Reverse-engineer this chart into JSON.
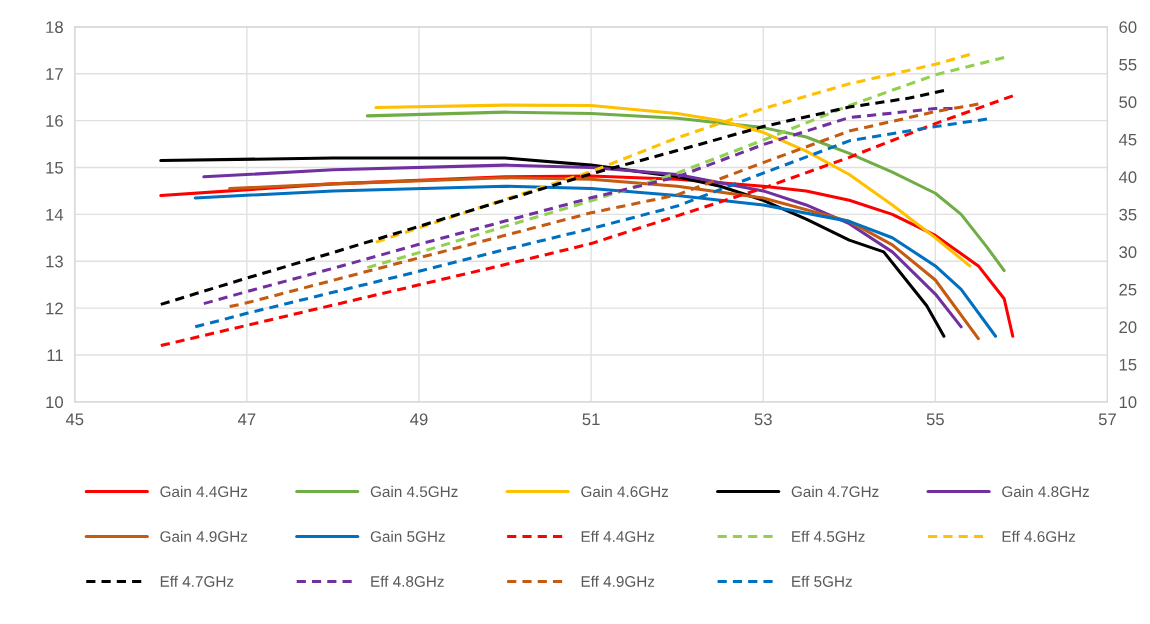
{
  "chart_data": {
    "type": "line",
    "xlim": [
      45,
      57
    ],
    "xticks": [
      45,
      47,
      49,
      51,
      53,
      55,
      57
    ],
    "ylim": [
      10,
      18
    ],
    "yticks": [
      10,
      11,
      12,
      13,
      14,
      15,
      16,
      17,
      18
    ],
    "y2lim": [
      10,
      60
    ],
    "y2ticks": [
      10,
      15,
      20,
      25,
      30,
      35,
      40,
      45,
      50,
      55,
      60
    ],
    "grid": true,
    "legend": "bottom",
    "series": [
      {
        "name": "Gain 4.4GHz",
        "color": "#ff0000",
        "line_style": "solid",
        "x": [
          46,
          48,
          50,
          51,
          52,
          53,
          53.5,
          54,
          54.5,
          55,
          55.5,
          55.8,
          55.9
        ],
        "values": [
          14.4,
          14.65,
          14.8,
          14.82,
          14.75,
          14.6,
          14.5,
          14.3,
          14.0,
          13.55,
          12.9,
          12.2,
          11.4
        ]
      },
      {
        "name": "Gain 4.5GHz",
        "color": "#70ad47",
        "line_style": "solid",
        "x": [
          48.4,
          50,
          51,
          52,
          53,
          53.5,
          54,
          54.5,
          55,
          55.3,
          55.6,
          55.8
        ],
        "values": [
          16.1,
          16.18,
          16.15,
          16.05,
          15.85,
          15.65,
          15.3,
          14.9,
          14.45,
          14.0,
          13.3,
          12.8
        ]
      },
      {
        "name": "Gain 4.6GHz",
        "color": "#ffc000",
        "line_style": "solid",
        "x": [
          48.5,
          50,
          51,
          52,
          52.5,
          53,
          53.5,
          54,
          54.5,
          55,
          55.4
        ],
        "values": [
          16.28,
          16.33,
          16.32,
          16.15,
          16.0,
          15.75,
          15.35,
          14.85,
          14.2,
          13.5,
          12.9
        ]
      },
      {
        "name": "Gain 4.7GHz",
        "color": "#000000",
        "line_style": "solid",
        "x": [
          46,
          48,
          50,
          51,
          52,
          52.5,
          53,
          53.5,
          54,
          54.4,
          54.9,
          55.1
        ],
        "values": [
          15.15,
          15.2,
          15.2,
          15.05,
          14.8,
          14.6,
          14.3,
          13.9,
          13.45,
          13.2,
          12.05,
          11.4
        ]
      },
      {
        "name": "Gain 4.8GHz",
        "color": "#7030a0",
        "line_style": "solid",
        "x": [
          46.5,
          48,
          50,
          51,
          52,
          53,
          53.5,
          54,
          54.5,
          55,
          55.3
        ],
        "values": [
          14.8,
          14.95,
          15.05,
          15.0,
          14.85,
          14.5,
          14.2,
          13.8,
          13.2,
          12.3,
          11.6
        ]
      },
      {
        "name": "Gain 4.9GHz",
        "color": "#c55a11",
        "line_style": "solid",
        "x": [
          46.8,
          48,
          50,
          51,
          52,
          53,
          54,
          54.5,
          55,
          55.5
        ],
        "values": [
          14.55,
          14.65,
          14.78,
          14.75,
          14.6,
          14.35,
          13.85,
          13.35,
          12.6,
          11.35
        ]
      },
      {
        "name": "Gain 5GHz",
        "color": "#0070c0",
        "line_style": "solid",
        "x": [
          46.4,
          48,
          50,
          51,
          52,
          53,
          54,
          54.5,
          55,
          55.3,
          55.7
        ],
        "values": [
          14.35,
          14.5,
          14.6,
          14.55,
          14.4,
          14.2,
          13.85,
          13.5,
          12.9,
          12.4,
          11.4
        ]
      },
      {
        "name": "Eff 4.4GHz",
        "color": "#ff0000",
        "line_style": "dashed",
        "axis": "y2",
        "x": [
          46,
          47,
          48,
          49,
          50,
          51,
          52,
          53,
          54,
          55,
          55.9
        ],
        "values": [
          17.5,
          20.2,
          22.9,
          25.6,
          28.3,
          31.1,
          34.8,
          38.5,
          42.6,
          47.1,
          50.8
        ]
      },
      {
        "name": "Eff 4.5GHz",
        "color": "#92d050",
        "line_style": "dashed",
        "axis": "y2",
        "x": [
          48.4,
          49,
          50,
          51,
          52,
          53,
          54,
          55,
          55.8
        ],
        "values": [
          27.9,
          29.9,
          33.4,
          36.8,
          40.5,
          44.9,
          49.5,
          53.6,
          55.9
        ]
      },
      {
        "name": "Eff 4.6GHz",
        "color": "#ffc000",
        "line_style": "dashed",
        "axis": "y2",
        "x": [
          48.5,
          49,
          50,
          51,
          52,
          53,
          54,
          55,
          55.4
        ],
        "values": [
          31.3,
          33.2,
          37.0,
          40.7,
          45.2,
          49.1,
          52.4,
          55.0,
          56.3
        ]
      },
      {
        "name": "Eff 4.7GHz",
        "color": "#000000",
        "line_style": "dashed",
        "axis": "y2",
        "x": [
          46,
          47,
          48,
          49,
          50,
          51,
          52,
          53,
          54,
          54.7,
          55.1
        ],
        "values": [
          23.0,
          26.5,
          29.9,
          33.4,
          36.9,
          40.4,
          43.5,
          46.7,
          49.3,
          50.5,
          51.5
        ]
      },
      {
        "name": "Eff 4.8GHz",
        "color": "#7030a0",
        "line_style": "dashed",
        "axis": "y2",
        "x": [
          46.5,
          47,
          48,
          49,
          50,
          51,
          52,
          53,
          54,
          55,
          55.2
        ],
        "values": [
          23.1,
          24.7,
          27.8,
          31.0,
          34.1,
          37.2,
          40.0,
          44.3,
          47.9,
          49.1,
          49.1
        ]
      },
      {
        "name": "Eff 4.9GHz",
        "color": "#c55a11",
        "line_style": "dashed",
        "axis": "y2",
        "x": [
          46.8,
          47,
          48,
          49,
          50,
          51,
          52,
          53,
          54,
          55,
          55.5
        ],
        "values": [
          22.7,
          23.2,
          26.2,
          29.2,
          32.2,
          35.2,
          37.6,
          41.9,
          46.1,
          48.7,
          49.7
        ]
      },
      {
        "name": "Eff 5GHz",
        "color": "#0070c0",
        "line_style": "dashed",
        "axis": "y2",
        "x": [
          46.4,
          47,
          48,
          49,
          50,
          51,
          52,
          53,
          54,
          55,
          55.6
        ],
        "values": [
          20.0,
          21.8,
          24.6,
          27.4,
          30.3,
          33.1,
          36.1,
          40.5,
          44.8,
          46.7,
          47.7
        ]
      }
    ]
  }
}
